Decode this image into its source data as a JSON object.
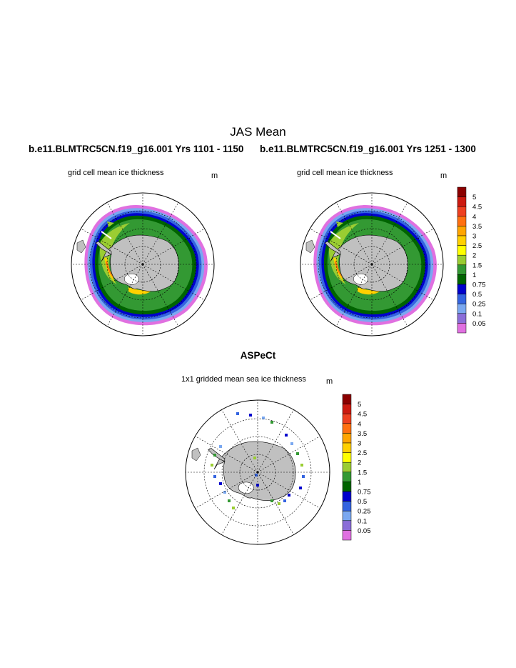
{
  "figure": {
    "title": "JAS Mean",
    "panels": [
      {
        "case": "b.e11.BLMTRC5CN.f19_g16.001  Yrs 1101 - 1150",
        "label": "grid cell mean ice thickness",
        "unit": "m"
      },
      {
        "case": "b.e11.BLMTRC5CN.f19_g16.001  Yrs 1251 - 1300",
        "label": "grid cell mean ice thickness",
        "unit": "m"
      }
    ],
    "observation": {
      "title": "ASPeCt",
      "label": "1x1 gridded mean sea ice thickness",
      "unit": "m"
    }
  },
  "colorbar": {
    "labels": [
      "5",
      "4.5",
      "4",
      "3.5",
      "3",
      "2.5",
      "2",
      "1.5",
      "1",
      "0.75",
      "0.5",
      "0.25",
      "0.1",
      "0.05"
    ],
    "colors": [
      "#8b0000",
      "#cc1a10",
      "#ee4020",
      "#ff7010",
      "#ffa500",
      "#ffd000",
      "#ffff00",
      "#9acd32",
      "#339933",
      "#006400",
      "#0000cd",
      "#3464e0",
      "#7aa8f0",
      "#8a6ed8",
      "#e070e0"
    ]
  },
  "map_colors": {
    "land": "#c0c0c0",
    "ocean": "#ffffff"
  }
}
